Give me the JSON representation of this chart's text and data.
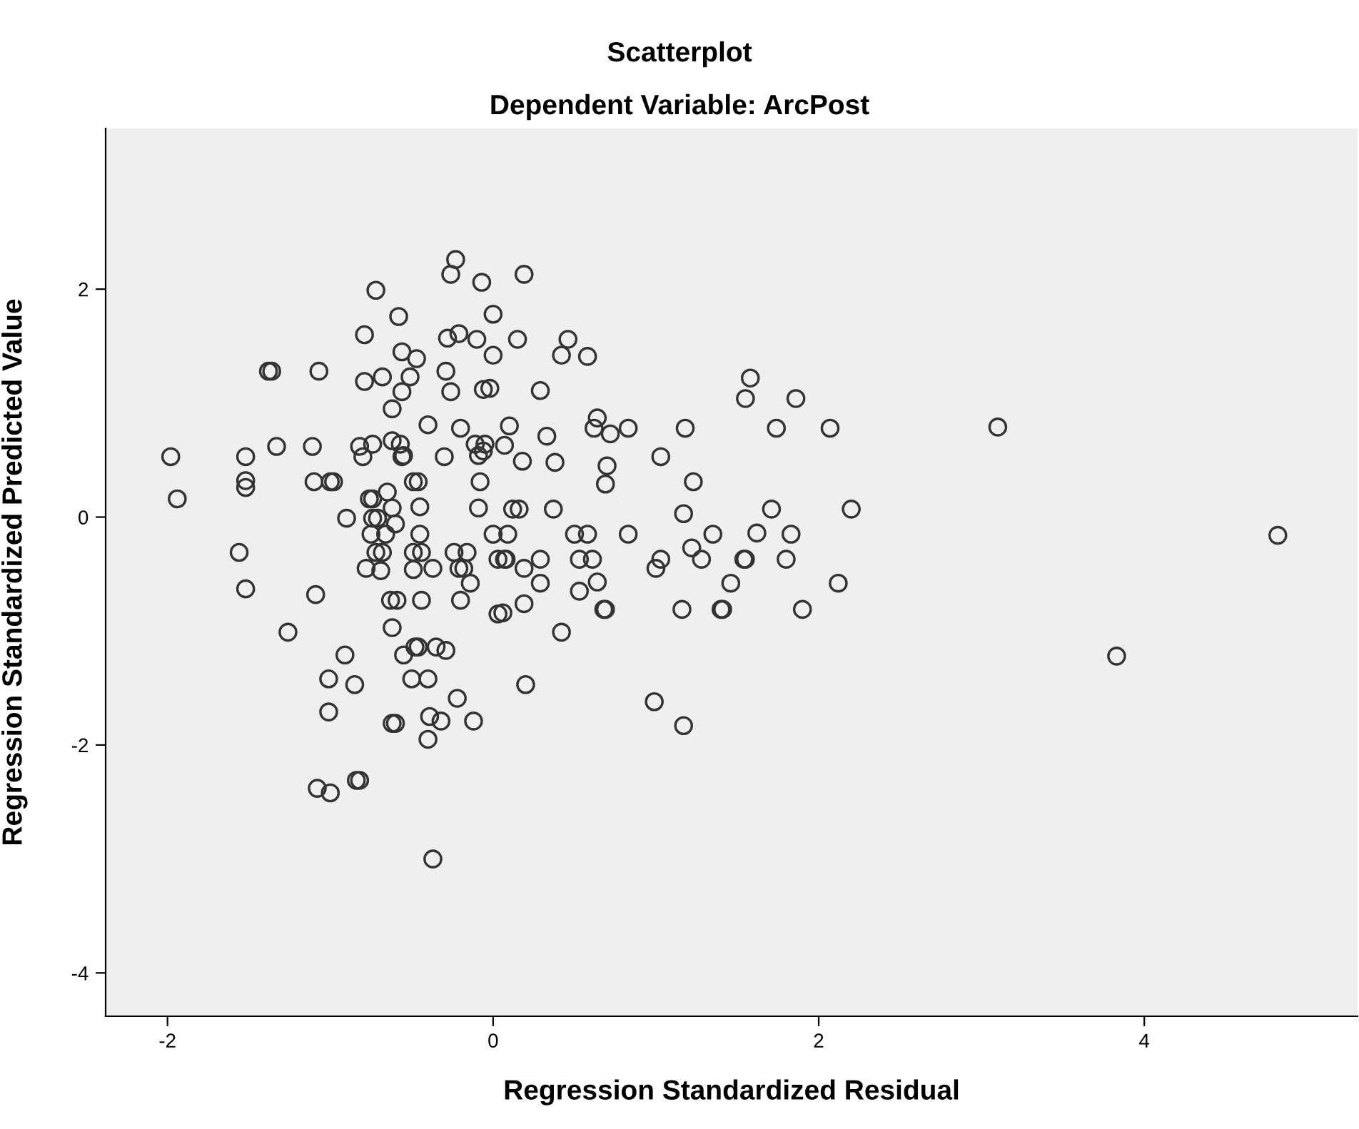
{
  "chart_data": {
    "type": "scatter",
    "title": "Scatterplot",
    "subtitle": "Dependent Variable: ArcPost",
    "xlabel": "Regression Standardized Residual",
    "ylabel": "Regression Standardized Predicted Value",
    "xlim": [
      -2.38,
      5.31
    ],
    "ylim": [
      -4.38,
      3.41
    ],
    "xticks": [
      -2,
      0,
      2,
      4
    ],
    "yticks": [
      -4,
      -2,
      0,
      2
    ],
    "grid": false,
    "marker": "circle",
    "series": [
      {
        "color": "#333333",
        "x": [
          -0.23,
          -0.26,
          -0.07,
          0.19,
          -0.72,
          0.0,
          -0.58,
          -0.79,
          -0.56,
          -0.47,
          -0.28,
          -0.21,
          -0.1,
          0.0,
          -1.38,
          -1.36,
          -1.07,
          -0.79,
          -0.68,
          -0.51,
          -0.56,
          -0.62,
          -0.29,
          -0.26,
          -0.06,
          -0.02,
          -0.4,
          -0.2,
          -1.98,
          -1.52,
          -1.33,
          -1.11,
          -0.82,
          -0.74,
          -0.8,
          -0.62,
          -0.57,
          -0.56,
          -0.55,
          -0.3,
          -0.11,
          -0.05,
          -0.06,
          -0.09,
          -1.94,
          -1.52,
          -1.52,
          -1.1,
          -1.0,
          -0.98,
          -0.46,
          -0.49,
          -0.08,
          -0.76,
          -0.74,
          -0.65,
          -0.62,
          -0.45,
          -0.09,
          -0.9,
          -0.74,
          -0.71,
          -0.6,
          -0.75,
          -0.66,
          -0.45,
          0.0,
          -1.56,
          -1.52,
          -1.09,
          -1.26,
          -0.72,
          -0.68,
          -0.78,
          -0.69,
          -0.49,
          -0.44,
          -0.49,
          -0.37,
          -0.24,
          -0.16,
          -0.21,
          -0.18,
          -0.14,
          -0.2,
          0.03,
          0.03,
          -0.63,
          -0.59,
          -0.44,
          -0.62,
          -0.91,
          -0.55,
          -0.48,
          -0.46,
          -0.35,
          -0.29,
          -1.01,
          -0.85,
          -0.5,
          -0.4,
          -0.22,
          -1.01,
          -0.62,
          -0.6,
          -0.39,
          -0.32,
          -0.12,
          -0.4,
          -1.08,
          -1.0,
          -0.84,
          -0.82,
          -0.37,
          0.15,
          0.46,
          0.42,
          0.58,
          0.29,
          1.58,
          1.55,
          1.86,
          0.1,
          0.33,
          0.64,
          0.62,
          0.72,
          0.83,
          1.18,
          1.74,
          2.07,
          0.07,
          0.18,
          0.38,
          0.7,
          0.69,
          1.03,
          1.23,
          0.12,
          0.16,
          0.37,
          1.17,
          1.71,
          0.09,
          0.5,
          0.58,
          0.83,
          1.35,
          1.62,
          1.83,
          0.07,
          0.08,
          0.19,
          0.29,
          0.53,
          0.61,
          1.03,
          1.0,
          1.22,
          1.28,
          1.54,
          1.55,
          1.8,
          0.29,
          0.53,
          0.64,
          1.46,
          2.12,
          0.06,
          0.19,
          0.68,
          0.69,
          1.16,
          1.4,
          1.41,
          1.9,
          0.42,
          0.2,
          0.99,
          1.17,
          3.1,
          2.2,
          4.82,
          3.83
        ],
        "values": [
          2.26,
          2.13,
          2.06,
          2.13,
          1.99,
          1.78,
          1.76,
          1.6,
          1.45,
          1.39,
          1.57,
          1.61,
          1.56,
          1.42,
          1.28,
          1.28,
          1.28,
          1.19,
          1.23,
          1.23,
          1.1,
          0.95,
          1.28,
          1.1,
          1.12,
          1.13,
          0.81,
          0.78,
          0.53,
          0.53,
          0.62,
          0.62,
          0.62,
          0.64,
          0.53,
          0.67,
          0.64,
          0.53,
          0.54,
          0.53,
          0.64,
          0.64,
          0.58,
          0.54,
          0.16,
          0.32,
          0.26,
          0.31,
          0.31,
          0.31,
          0.31,
          0.31,
          0.31,
          0.16,
          0.16,
          0.22,
          0.08,
          0.09,
          0.08,
          -0.01,
          -0.01,
          -0.01,
          -0.06,
          -0.15,
          -0.15,
          -0.15,
          -0.15,
          -0.31,
          -0.63,
          -0.68,
          -1.01,
          -0.31,
          -0.31,
          -0.45,
          -0.47,
          -0.31,
          -0.31,
          -0.46,
          -0.45,
          -0.31,
          -0.31,
          -0.45,
          -0.45,
          -0.58,
          -0.73,
          -0.37,
          -0.85,
          -0.73,
          -0.73,
          -0.73,
          -0.97,
          -1.21,
          -1.21,
          -1.14,
          -1.14,
          -1.14,
          -1.17,
          -1.42,
          -1.47,
          -1.42,
          -1.42,
          -1.59,
          -1.71,
          -1.81,
          -1.81,
          -1.75,
          -1.79,
          -1.79,
          -1.95,
          -2.38,
          -2.42,
          -2.31,
          -2.31,
          -3.0,
          1.56,
          1.56,
          1.42,
          1.41,
          1.11,
          1.22,
          1.04,
          1.04,
          0.8,
          0.71,
          0.87,
          0.78,
          0.73,
          0.78,
          0.78,
          0.78,
          0.78,
          0.63,
          0.49,
          0.48,
          0.45,
          0.29,
          0.53,
          0.31,
          0.07,
          0.07,
          0.07,
          0.03,
          0.07,
          -0.15,
          -0.15,
          -0.15,
          -0.15,
          -0.15,
          -0.14,
          -0.15,
          -0.37,
          -0.37,
          -0.45,
          -0.37,
          -0.37,
          -0.37,
          -0.37,
          -0.45,
          -0.27,
          -0.37,
          -0.37,
          -0.37,
          -0.37,
          -0.58,
          -0.65,
          -0.57,
          -0.58,
          -0.58,
          -0.84,
          -0.76,
          -0.81,
          -0.81,
          -0.81,
          -0.81,
          -0.81,
          -0.81,
          -1.01,
          -1.47,
          -1.62,
          -1.83,
          0.79,
          0.07,
          -0.16,
          -1.22
        ]
      }
    ]
  }
}
